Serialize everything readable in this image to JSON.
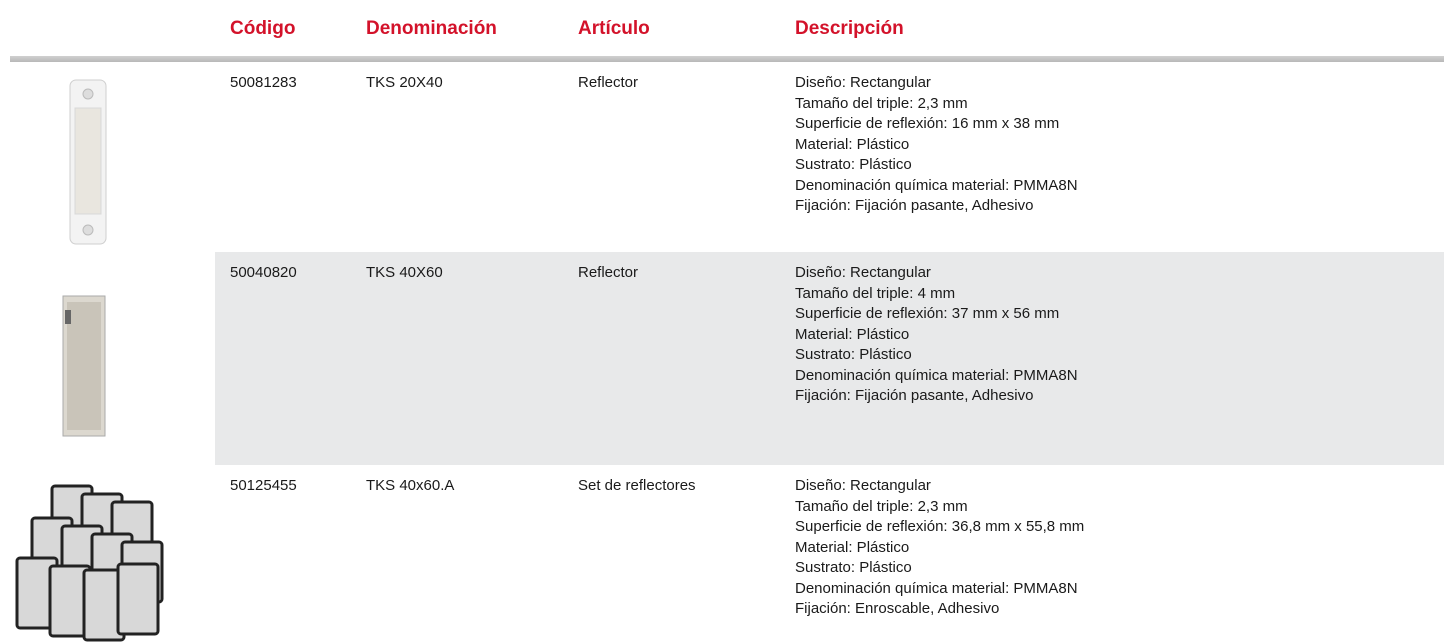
{
  "table": {
    "columns": [
      "Código",
      "Denominación",
      "Artículo",
      "Descripción"
    ],
    "rows": [
      {
        "code": "50081283",
        "name": "TKS 20X40",
        "article": "Reflector",
        "description": [
          "Diseño: Rectangular",
          "Tamaño del triple: 2,3 mm",
          "Superficie de reflexión: 16 mm x 38 mm",
          "Material: Plástico",
          "Sustrato: Plástico",
          "Denominación química material: PMMA8N",
          "Fijación: Fijación pasante, Adhesivo"
        ]
      },
      {
        "code": "50040820",
        "name": "TKS 40X60",
        "article": "Reflector",
        "description": [
          "Diseño: Rectangular",
          "Tamaño del triple: 4 mm",
          "Superficie de reflexión: 37 mm x 56 mm",
          "Material: Plástico",
          "Sustrato: Plástico",
          "Denominación química material: PMMA8N",
          "Fijación: Fijación pasante, Adhesivo"
        ]
      },
      {
        "code": "50125455",
        "name": "TKS 40x60.A",
        "article": "Set de reflectores",
        "description": [
          "Diseño: Rectangular",
          "Tamaño del triple: 2,3 mm",
          "Superficie de reflexión: 36,8 mm x 55,8 mm",
          "Material: Plástico",
          "Sustrato: Plástico",
          "Denominación química material: PMMA8N",
          "Fijación: Enroscable, Adhesivo"
        ]
      }
    ]
  }
}
